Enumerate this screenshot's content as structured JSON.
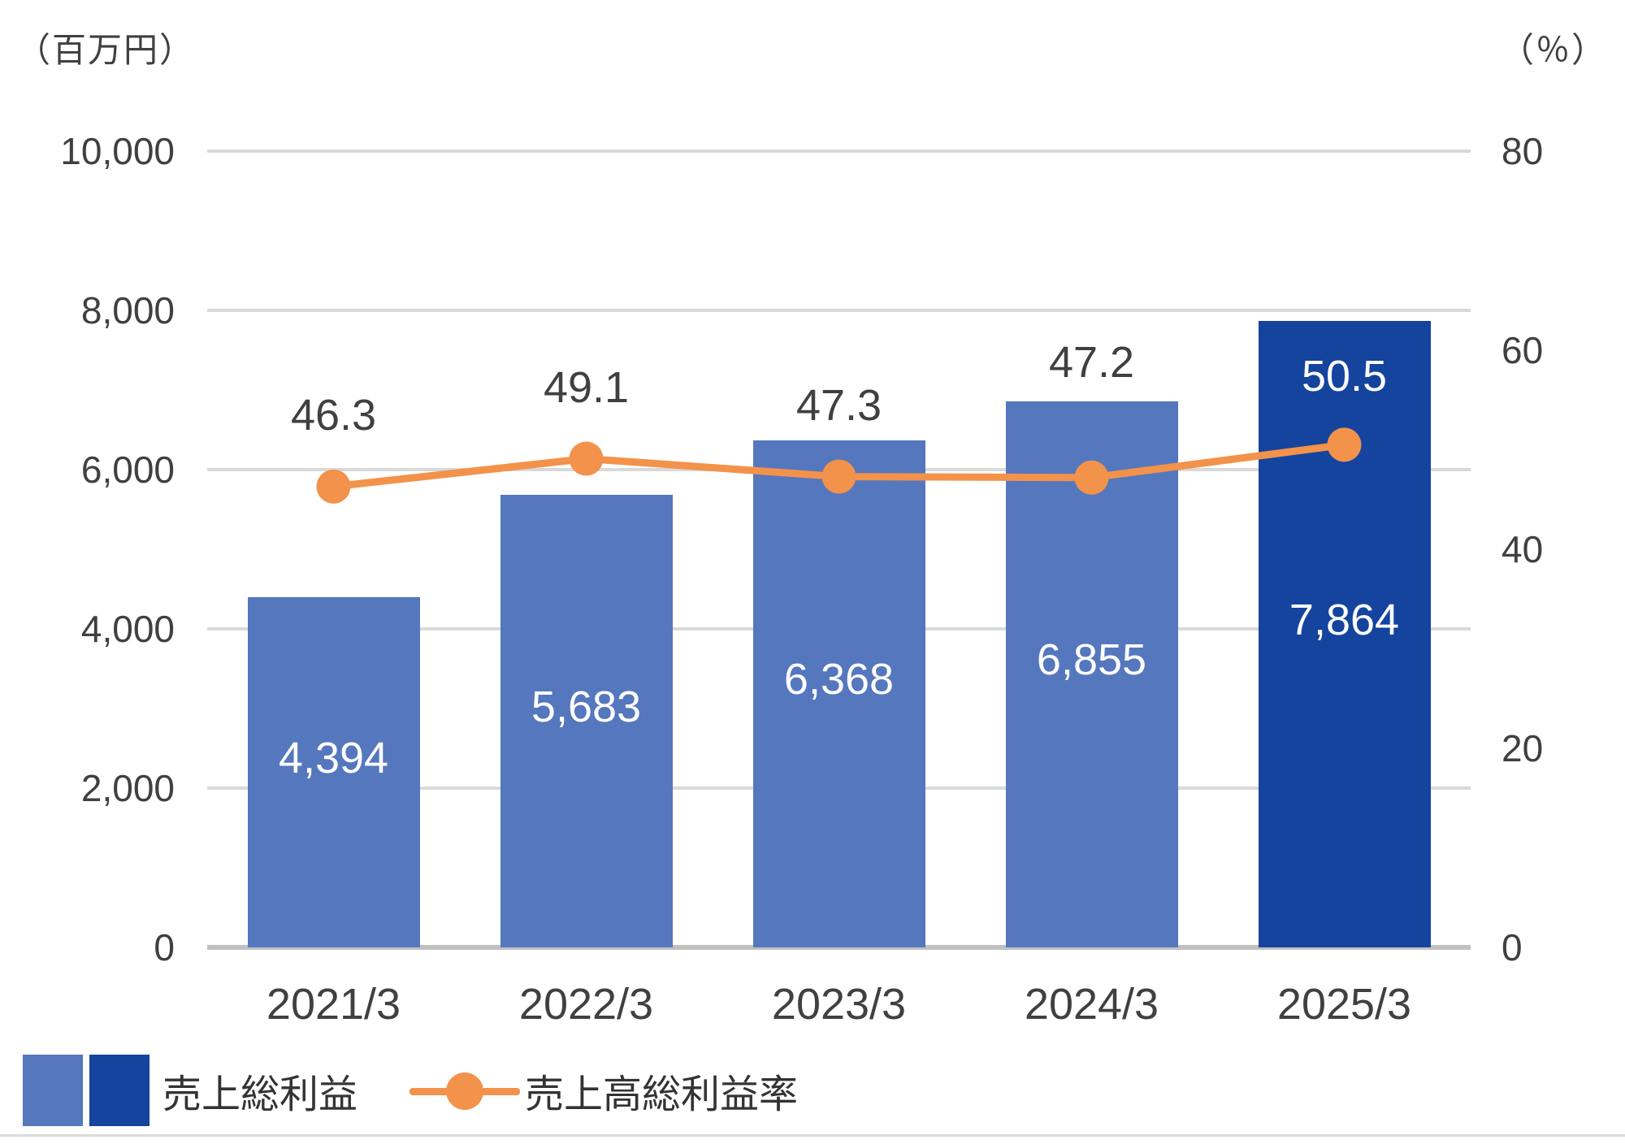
{
  "chart_data": {
    "type": "combo-bar-line",
    "title": "",
    "categories": [
      "2021/3",
      "2022/3",
      "2023/3",
      "2024/3",
      "2025/3"
    ],
    "series": [
      {
        "name": "売上総利益",
        "type": "bar",
        "axis": "left",
        "values": [
          4394,
          5683,
          6368,
          6855,
          7864
        ],
        "value_labels": [
          "4,394",
          "5,683",
          "6,368",
          "6,855",
          "7,864"
        ]
      },
      {
        "name": "売上高総利益率",
        "type": "line",
        "axis": "right",
        "values": [
          46.3,
          49.1,
          47.3,
          47.2,
          50.5
        ],
        "value_labels": [
          "46.3",
          "49.1",
          "47.3",
          "47.2",
          "50.5"
        ]
      }
    ],
    "left_axis": {
      "unit_label": "（百万円）",
      "min": 0,
      "max": 10000,
      "tick_step": 2000,
      "tick_values": [
        0,
        2000,
        4000,
        6000,
        8000,
        10000
      ],
      "tick_labels": [
        "0",
        "2,000",
        "4,000",
        "6,000",
        "8,000",
        "10,000"
      ]
    },
    "right_axis": {
      "unit_label": "（％）",
      "min": 0,
      "max": 80,
      "tick_step": 20,
      "tick_values": [
        0,
        20,
        40,
        60,
        80
      ],
      "tick_labels": [
        "0",
        "20",
        "40",
        "60",
        "80"
      ]
    },
    "highlight_index": 4,
    "grid": true,
    "legend_position": "bottom-left",
    "legend": {
      "items": [
        {
          "label": "売上総利益"
        },
        {
          "label": "売上高総利益率"
        }
      ]
    },
    "colors": {
      "bar": "#5577BE",
      "bar_highlight": "#14449E",
      "line": "#F3924B",
      "gridline": "#D9D9D9",
      "axis_line": "#C0C0C0",
      "tick_text": "#404040",
      "bar_label_text": "#FFFFFF"
    }
  }
}
